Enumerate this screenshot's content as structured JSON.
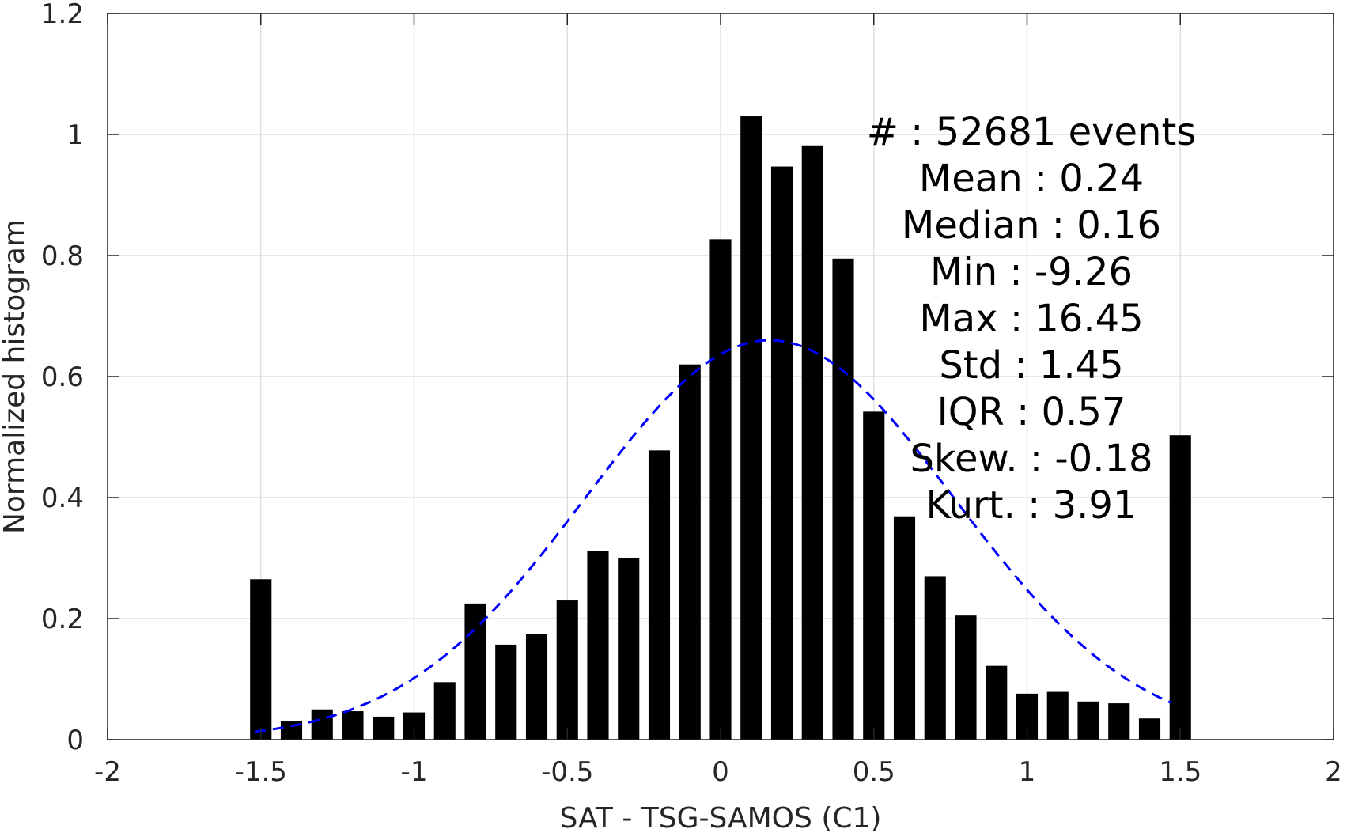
{
  "chart_data": {
    "type": "bar",
    "xlabel": "SAT - TSG-SAMOS (C1)",
    "ylabel": "Normalized histogram",
    "xlim": [
      -2,
      2
    ],
    "ylim": [
      0,
      1.2
    ],
    "x_ticks": [
      "-2",
      "-1.5",
      "-1",
      "-0.5",
      "0",
      "0.5",
      "1",
      "1.5",
      "2"
    ],
    "y_ticks": [
      "0",
      "0.2",
      "0.4",
      "0.6",
      "0.8",
      "1",
      "1.2"
    ],
    "grid": true,
    "bin_width": 0.1,
    "bar_relative_width": 0.7,
    "bins": {
      "x": [
        -1.5,
        -1.4,
        -1.3,
        -1.2,
        -1.1,
        -1.0,
        -0.9,
        -0.8,
        -0.7,
        -0.6,
        -0.5,
        -0.4,
        -0.3,
        -0.2,
        -0.1,
        0.0,
        0.1,
        0.2,
        0.3,
        0.4,
        0.5,
        0.6,
        0.7,
        0.8,
        0.9,
        1.0,
        1.1,
        1.2,
        1.3,
        1.4,
        1.5
      ],
      "values": [
        0.265,
        0.03,
        0.05,
        0.047,
        0.038,
        0.045,
        0.095,
        0.225,
        0.157,
        0.174,
        0.23,
        0.312,
        0.3,
        0.478,
        0.62,
        0.827,
        1.03,
        0.947,
        0.982,
        0.795,
        0.542,
        0.369,
        0.27,
        0.205,
        0.122,
        0.076,
        0.079,
        0.063,
        0.06,
        0.035,
        0.503
      ]
    },
    "fit_curve": {
      "style": "dashed",
      "color": "#0000ff",
      "mean": 0.16,
      "sigma": 0.6,
      "peak": 0.66,
      "x_range": [
        -1.52,
        1.47
      ]
    },
    "annotations": [
      {
        "label": "#",
        "sep": ":",
        "value": "52681 events"
      },
      {
        "label": "Mean",
        "sep": ":",
        "value": "0.24"
      },
      {
        "label": "Median",
        "sep": ":",
        "value": "0.16"
      },
      {
        "label": "Min",
        "sep": ":",
        "value": "-9.26"
      },
      {
        "label": "Max",
        "sep": ":",
        "value": "16.45"
      },
      {
        "label": "Std",
        "sep": ":",
        "value": "1.45"
      },
      {
        "label": "IQR",
        "sep": ":",
        "value": "0.57"
      },
      {
        "label": "Skew.",
        "sep": ":",
        "value": "-0.18"
      },
      {
        "label": "Kurt.",
        "sep": ":",
        "value": "3.91"
      }
    ]
  }
}
